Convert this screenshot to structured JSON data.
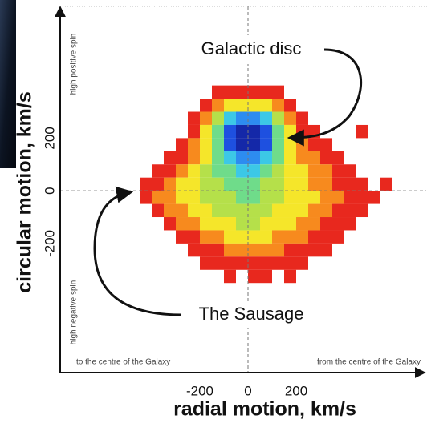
{
  "chart_data": {
    "type": "hist2d",
    "xlabel": "radial motion, km/s",
    "ylabel": "circular motion, km/s",
    "annotations": [
      "high positive spin",
      "high negative spin",
      "to the centre of the Galaxy",
      "from the centre of the Galaxy"
    ],
    "callouts": [
      "Galactic disc",
      "The Sausage"
    ],
    "xlim": [
      -780,
      740
    ],
    "ylim": [
      -690,
      700
    ],
    "xticks": [
      -200,
      0,
      200
    ],
    "yticks": [
      -200,
      0,
      200
    ],
    "xbins": [
      -450,
      -400,
      -350,
      -300,
      -250,
      -200,
      -150,
      -100,
      -50,
      0,
      50,
      100,
      150,
      200,
      250,
      300,
      350,
      400,
      450,
      500,
      550,
      600
    ],
    "ybins": [
      400,
      350,
      300,
      250,
      200,
      150,
      100,
      50,
      0,
      -50,
      -100,
      -150,
      -200,
      -250,
      -300,
      -350
    ],
    "colorscale": [
      "#e8281e",
      "#f78a1e",
      "#f5e62a",
      "#b5e04a",
      "#6fdc8a",
      "#3cc8e6",
      "#2d8cf0",
      "#1e50e0",
      "#1428a8"
    ],
    "values": [
      [
        0,
        0,
        0,
        0,
        0,
        0,
        1,
        1,
        1,
        1,
        1,
        1,
        0,
        0,
        0,
        0,
        0,
        0,
        0,
        0,
        0
      ],
      [
        0,
        0,
        0,
        0,
        0,
        1,
        2,
        3,
        3,
        3,
        3,
        2,
        1,
        0,
        0,
        0,
        0,
        0,
        0,
        0,
        0
      ],
      [
        0,
        0,
        0,
        0,
        1,
        2,
        4,
        6,
        7,
        7,
        6,
        4,
        2,
        1,
        0,
        0,
        0,
        0,
        0,
        0,
        0
      ],
      [
        0,
        0,
        0,
        0,
        1,
        3,
        5,
        8,
        9,
        9,
        8,
        5,
        3,
        1,
        1,
        0,
        0,
        0,
        1,
        0,
        0
      ],
      [
        0,
        0,
        0,
        1,
        2,
        3,
        5,
        8,
        9,
        9,
        8,
        5,
        3,
        2,
        1,
        1,
        0,
        0,
        0,
        0,
        0
      ],
      [
        0,
        0,
        1,
        1,
        2,
        3,
        5,
        6,
        7,
        7,
        6,
        5,
        3,
        2,
        2,
        1,
        1,
        0,
        0,
        0,
        0
      ],
      [
        0,
        1,
        1,
        2,
        3,
        4,
        5,
        5,
        6,
        6,
        5,
        4,
        3,
        3,
        2,
        2,
        1,
        1,
        0,
        0,
        0
      ],
      [
        1,
        1,
        2,
        3,
        3,
        4,
        4,
        5,
        5,
        5,
        4,
        4,
        3,
        3,
        2,
        2,
        1,
        1,
        1,
        0,
        1
      ],
      [
        1,
        2,
        2,
        3,
        3,
        4,
        4,
        4,
        5,
        5,
        4,
        4,
        3,
        3,
        3,
        2,
        2,
        1,
        1,
        1,
        0
      ],
      [
        0,
        1,
        2,
        2,
        3,
        3,
        4,
        4,
        4,
        4,
        4,
        3,
        3,
        3,
        2,
        2,
        1,
        1,
        1,
        0,
        0
      ],
      [
        0,
        0,
        1,
        2,
        2,
        3,
        3,
        3,
        4,
        4,
        3,
        3,
        3,
        2,
        2,
        1,
        1,
        1,
        0,
        0,
        0
      ],
      [
        0,
        0,
        0,
        1,
        1,
        2,
        2,
        3,
        3,
        3,
        3,
        2,
        2,
        2,
        1,
        1,
        1,
        0,
        0,
        0,
        0
      ],
      [
        0,
        0,
        0,
        0,
        1,
        1,
        1,
        2,
        2,
        2,
        2,
        2,
        1,
        1,
        1,
        1,
        0,
        0,
        0,
        0,
        0
      ],
      [
        0,
        0,
        0,
        0,
        0,
        1,
        1,
        1,
        1,
        1,
        1,
        1,
        1,
        1,
        0,
        0,
        0,
        0,
        0,
        0,
        0
      ],
      [
        0,
        0,
        0,
        0,
        0,
        0,
        0,
        1,
        0,
        1,
        1,
        0,
        1,
        0,
        0,
        0,
        0,
        0,
        0,
        0,
        0
      ]
    ]
  }
}
